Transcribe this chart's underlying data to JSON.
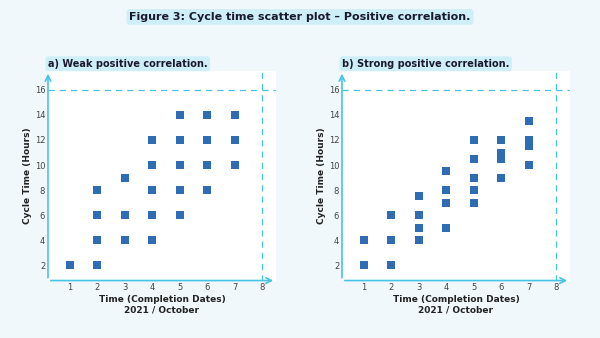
{
  "title": "Figure 3: Cycle time scatter plot – Positive correlation.",
  "subplot_a_title": "a) Weak positive correlation.",
  "subplot_b_title": "b) Strong positive correlation.",
  "xlabel_line1": "Time (Completion Dates)",
  "xlabel_line2": "2021 / October",
  "ylabel": "Cycle Time (Hours)",
  "xlim": [
    0.2,
    8.5
  ],
  "ylim": [
    0.8,
    17.5
  ],
  "xticks": [
    1,
    2,
    3,
    4,
    5,
    6,
    7,
    8
  ],
  "yticks": [
    2,
    4,
    6,
    8,
    10,
    12,
    14,
    16
  ],
  "weak_x": [
    1,
    2,
    2,
    2,
    2,
    3,
    3,
    3,
    4,
    4,
    4,
    4,
    4,
    5,
    5,
    5,
    5,
    5,
    6,
    6,
    6,
    6,
    7,
    7,
    7
  ],
  "weak_y": [
    2,
    2,
    4,
    6,
    8,
    4,
    6,
    9,
    4,
    6,
    8,
    10,
    12,
    6,
    8,
    10,
    12,
    14,
    8,
    10,
    12,
    14,
    10,
    12,
    14
  ],
  "strong_x": [
    1,
    1,
    2,
    2,
    2,
    3,
    3,
    3,
    3,
    4,
    4,
    4,
    4,
    5,
    5,
    5,
    5,
    5,
    6,
    6,
    6,
    6,
    7,
    7,
    7,
    7
  ],
  "strong_y": [
    2,
    4,
    2,
    4,
    6,
    4,
    5,
    6,
    7.5,
    5,
    7,
    8,
    9.5,
    7,
    8,
    9,
    10.5,
    12,
    9,
    10.5,
    11,
    12,
    10,
    11.5,
    12,
    13.5
  ],
  "marker_color": "#2E6DB4",
  "marker_size": 28,
  "marker": "s",
  "dashed_color": "#45C4E8",
  "axis_color": "#45C4E8",
  "title_box_color": "#ceeef8",
  "subplot_title_box_color": "#ceeef8",
  "fig_bg_color": "#f0f8fb",
  "plot_bg_color": "#ffffff",
  "title_fontsize": 8,
  "subtitle_fontsize": 7,
  "label_fontsize": 6.5,
  "tick_fontsize": 6
}
